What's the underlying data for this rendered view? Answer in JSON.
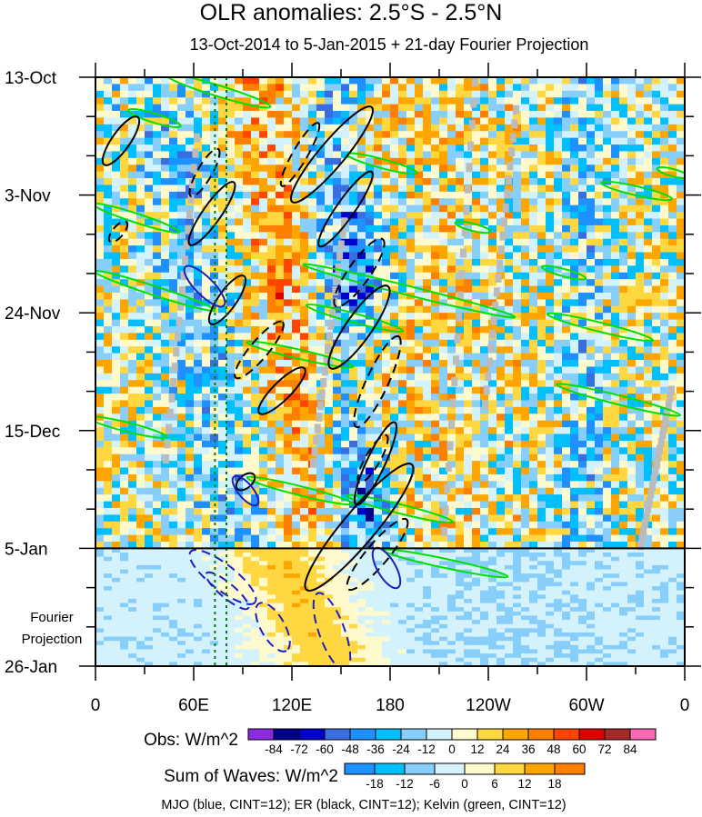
{
  "chart_data": {
    "type": "heatmap",
    "title": "OLR anomalies: 2.5°S - 2.5°N",
    "subtitle": "13-Oct-2014 to 5-Jan-2015 + 21-day Fourier Projection",
    "x_ticks": [
      "0",
      "60E",
      "120E",
      "180",
      "120W",
      "60W",
      "0"
    ],
    "x_tick_lon": [
      0,
      60,
      120,
      180,
      240,
      300,
      360
    ],
    "y_ticks": [
      "13-Oct",
      "3-Nov",
      "24-Nov",
      "15-Dec",
      "5-Jan",
      "26-Jan"
    ],
    "y_tick_day": [
      0,
      21,
      42,
      63,
      84,
      105
    ],
    "forecast_label": [
      "Fourier",
      "Projection"
    ],
    "obs_end_day": 84,
    "colorbar_obs": {
      "label": "Obs: W/m^2",
      "levels": [
        "-84",
        "-72",
        "-60",
        "-48",
        "-36",
        "-24",
        "-12",
        "0",
        "12",
        "24",
        "36",
        "48",
        "60",
        "72",
        "84"
      ],
      "colors": [
        "#8a2be2",
        "#00008b",
        "#0000cd",
        "#3a6ee0",
        "#1e90ff",
        "#00bfff",
        "#87cefa",
        "#d4f2fb",
        "#fffacd",
        "#ffd740",
        "#ffa500",
        "#ff7f00",
        "#ff4500",
        "#dd0000",
        "#a52a2a",
        "#ff69b4"
      ]
    },
    "colorbar_waves": {
      "label": "Sum of Waves: W/m^2",
      "levels": [
        "-18",
        "-12",
        "-6",
        "0",
        "6",
        "12",
        "18"
      ],
      "colors": [
        "#1e90ff",
        "#00bfff",
        "#87cefa",
        "#d4f2fb",
        "#fffacd",
        "#ffd740",
        "#ffa500",
        "#ff7f00"
      ]
    },
    "contours_note": "MJO (blue, CINT=12); ER (black, CINT=12); Kelvin (green, CINT=12)",
    "contour_colors": {
      "mjo": "#1f1fbf",
      "er": "#000000",
      "kelvin": "#00e000",
      "missing": "#bbbbbb"
    },
    "mjo_lines_lon": [
      73,
      80
    ],
    "mjo_lines_color": "#008000"
  }
}
